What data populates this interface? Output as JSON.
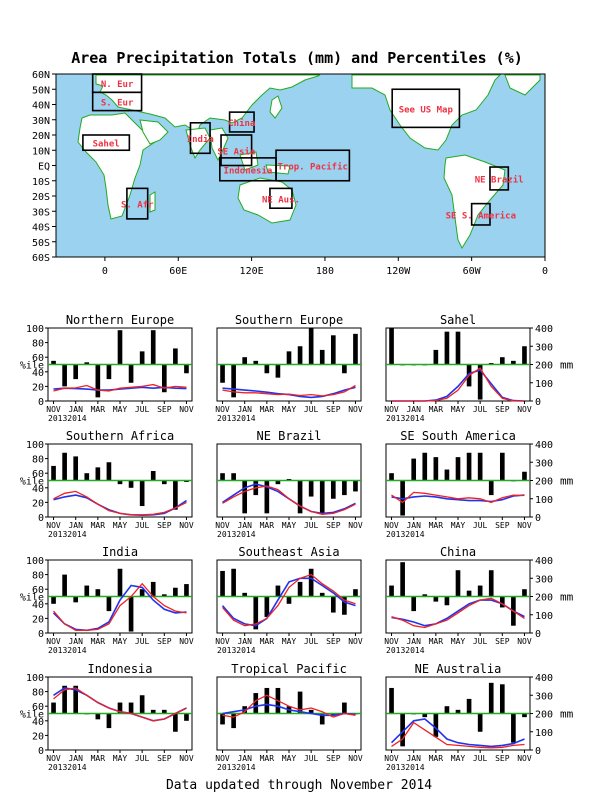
{
  "page": {
    "title": "Area Precipitation Totals (mm) and Percentiles (%)",
    "footer": "Data updated through November 2014"
  },
  "colors": {
    "ocean": "#9bd2f0",
    "land": "#ffffff",
    "coast": "#22aa22",
    "region_label": "#ee3344",
    "bars": "#000000",
    "line_observed": "#ee2222",
    "line_normal": "#2233ee",
    "line_50th": "#22aa22"
  },
  "map": {
    "lat_ticks": [
      "60N",
      "50N",
      "40N",
      "30N",
      "20N",
      "10N",
      "EQ",
      "10S",
      "20S",
      "30S",
      "40S",
      "50S",
      "60S"
    ],
    "lon_ticks": [
      "0",
      "60E",
      "120E",
      "180",
      "120W",
      "60W",
      "0"
    ],
    "regions": [
      {
        "label": "N. Eur",
        "lon": [
          -10,
          30
        ],
        "lat": [
          48,
          60
        ]
      },
      {
        "label": "S. Eur",
        "lon": [
          -10,
          30
        ],
        "lat": [
          36,
          48
        ]
      },
      {
        "label": "Sahel",
        "lon": [
          -18,
          20
        ],
        "lat": [
          10,
          20
        ]
      },
      {
        "label": "S. Afr",
        "lon": [
          18,
          35
        ],
        "lat": [
          -35,
          -15
        ]
      },
      {
        "label": "India",
        "lon": [
          70,
          86
        ],
        "lat": [
          8,
          28
        ]
      },
      {
        "label": "SE Asia",
        "lon": [
          95,
          120
        ],
        "lat": [
          0,
          20
        ]
      },
      {
        "label": "China",
        "lon": [
          102,
          122
        ],
        "lat": [
          22,
          35
        ]
      },
      {
        "label": "Indonesia",
        "lon": [
          94,
          140
        ],
        "lat": [
          -10,
          5
        ]
      },
      {
        "label": "Trop. Pacific",
        "lon": [
          140,
          200
        ],
        "lat": [
          -10,
          10
        ]
      },
      {
        "label": "NE Aus.",
        "lon": [
          135,
          153
        ],
        "lat": [
          -28,
          -15
        ]
      },
      {
        "label": "See US Map",
        "lon": [
          235,
          290
        ],
        "lat": [
          25,
          50
        ]
      },
      {
        "label": "NE Brazil",
        "lon": [
          315,
          330
        ],
        "lat": [
          -16,
          -1
        ]
      },
      {
        "label": "SE S. America",
        "lon": [
          300,
          315
        ],
        "lat": [
          -39,
          -25
        ]
      }
    ]
  },
  "panel_axes": {
    "left_label": "%ile",
    "right_label": "mm",
    "months": [
      "NOV",
      "JAN",
      "MAR",
      "MAY",
      "JUL",
      "SEP",
      "NOV"
    ],
    "years": [
      "2013",
      "2014"
    ]
  },
  "chart_data": [
    {
      "type": "bar+line",
      "title": "Northern Europe",
      "pct_ylim": [
        0,
        100
      ],
      "mm_ylim": [
        0,
        400
      ],
      "percentile": [
        55,
        20,
        30,
        53,
        5,
        30,
        97,
        25,
        68,
        97,
        12,
        72,
        38
      ],
      "mm_observed": [
        55,
        70,
        72,
        85,
        60,
        55,
        70,
        75,
        80,
        90,
        70,
        80,
        75
      ],
      "mm_normal": [
        65,
        70,
        68,
        65,
        60,
        60,
        65,
        70,
        75,
        70,
        75,
        70,
        68
      ]
    },
    {
      "type": "bar+line",
      "title": "Southern Europe",
      "pct_ylim": [
        0,
        100
      ],
      "mm_ylim": [
        0,
        400
      ],
      "percentile": [
        25,
        5,
        60,
        55,
        38,
        32,
        68,
        75,
        100,
        70,
        90,
        38,
        92
      ],
      "mm_observed": [
        60,
        50,
        45,
        45,
        40,
        35,
        38,
        30,
        35,
        28,
        35,
        50,
        85
      ],
      "mm_normal": [
        70,
        65,
        60,
        55,
        48,
        40,
        35,
        25,
        20,
        25,
        40,
        60,
        75
      ]
    },
    {
      "type": "bar+line",
      "title": "Sahel",
      "pct_ylim": [
        0,
        100
      ],
      "mm_ylim": [
        0,
        400
      ],
      "percentile": [
        100,
        50,
        50,
        50,
        70,
        95,
        95,
        20,
        2,
        52,
        60,
        55,
        75
      ],
      "mm_observed": [
        0,
        0,
        0,
        0,
        2,
        15,
        60,
        140,
        180,
        80,
        15,
        0,
        0
      ],
      "mm_normal": [
        0,
        0,
        0,
        0,
        5,
        25,
        80,
        150,
        170,
        95,
        20,
        2,
        0
      ]
    },
    {
      "type": "bar+line",
      "title": "Southern Africa",
      "pct_ylim": [
        0,
        100
      ],
      "mm_ylim": [
        0,
        400
      ],
      "percentile": [
        70,
        88,
        83,
        60,
        68,
        75,
        45,
        40,
        15,
        63,
        45,
        10,
        48
      ],
      "mm_observed": [
        100,
        130,
        140,
        110,
        70,
        35,
        20,
        12,
        12,
        15,
        25,
        50,
        80
      ],
      "mm_normal": [
        95,
        110,
        120,
        105,
        70,
        40,
        20,
        12,
        10,
        12,
        20,
        50,
        90
      ]
    },
    {
      "type": "bar+line",
      "title": "NE Brazil",
      "pct_ylim": [
        0,
        100
      ],
      "mm_ylim": [
        0,
        400
      ],
      "percentile": [
        60,
        60,
        5,
        30,
        5,
        45,
        52,
        5,
        28,
        5,
        25,
        30,
        35
      ],
      "mm_observed": [
        75,
        110,
        140,
        160,
        170,
        150,
        100,
        60,
        30,
        15,
        20,
        40,
        70
      ],
      "mm_normal": [
        80,
        120,
        160,
        180,
        165,
        140,
        100,
        60,
        30,
        20,
        25,
        45,
        75
      ]
    },
    {
      "type": "bar+line",
      "title": "SE South America",
      "pct_ylim": [
        0,
        100
      ],
      "mm_ylim": [
        0,
        400
      ],
      "percentile": [
        60,
        2,
        80,
        88,
        82,
        65,
        82,
        88,
        88,
        30,
        88,
        50,
        62
      ],
      "mm_observed": [
        120,
        80,
        135,
        130,
        120,
        110,
        100,
        105,
        100,
        80,
        105,
        120,
        118
      ],
      "mm_normal": [
        110,
        100,
        110,
        115,
        110,
        100,
        95,
        90,
        90,
        85,
        95,
        115,
        120
      ]
    },
    {
      "type": "bar+line",
      "title": "India",
      "pct_ylim": [
        0,
        100
      ],
      "mm_ylim": [
        0,
        400
      ],
      "percentile": [
        40,
        80,
        42,
        65,
        60,
        30,
        88,
        2,
        60,
        70,
        53,
        62,
        67
      ],
      "mm_observed": [
        120,
        50,
        15,
        15,
        20,
        50,
        150,
        200,
        270,
        200,
        150,
        120,
        110
      ],
      "mm_normal": [
        110,
        50,
        20,
        15,
        25,
        60,
        180,
        260,
        250,
        180,
        130,
        110,
        115
      ]
    },
    {
      "type": "bar+line",
      "title": "Southeast Asia",
      "pct_ylim": [
        0,
        100
      ],
      "mm_ylim": [
        0,
        400
      ],
      "percentile": [
        85,
        88,
        55,
        5,
        22,
        65,
        40,
        70,
        88,
        55,
        28,
        25,
        60
      ],
      "mm_observed": [
        140,
        70,
        40,
        50,
        80,
        150,
        250,
        300,
        320,
        270,
        230,
        180,
        160
      ],
      "mm_normal": [
        150,
        80,
        50,
        40,
        80,
        180,
        280,
        300,
        300,
        260,
        220,
        170,
        150
      ]
    },
    {
      "type": "bar+line",
      "title": "China",
      "pct_ylim": [
        0,
        100
      ],
      "mm_ylim": [
        0,
        400
      ],
      "percentile": [
        65,
        97,
        30,
        53,
        43,
        38,
        86,
        58,
        65,
        86,
        35,
        10,
        60
      ],
      "mm_observed": [
        90,
        70,
        40,
        30,
        50,
        70,
        110,
        150,
        180,
        190,
        160,
        120,
        80
      ],
      "mm_normal": [
        85,
        75,
        60,
        40,
        50,
        80,
        120,
        160,
        180,
        180,
        160,
        120,
        90
      ]
    },
    {
      "type": "bar+line",
      "title": "Indonesia",
      "pct_ylim": [
        0,
        100
      ],
      "mm_ylim": [
        0,
        400
      ],
      "percentile": [
        65,
        88,
        88,
        50,
        42,
        30,
        65,
        65,
        75,
        55,
        55,
        25,
        40
      ],
      "mm_observed": [
        280,
        330,
        340,
        300,
        260,
        230,
        210,
        200,
        180,
        160,
        170,
        200,
        230
      ],
      "mm_normal": [
        300,
        340,
        330,
        300,
        260,
        230,
        210,
        200,
        180,
        160,
        170,
        200,
        230
      ]
    },
    {
      "type": "bar+line",
      "title": "Tropical Pacific",
      "pct_ylim": [
        0,
        100
      ],
      "mm_ylim": [
        0,
        400
      ],
      "percentile": [
        35,
        30,
        60,
        78,
        85,
        85,
        60,
        80,
        55,
        35,
        47,
        65,
        50
      ],
      "mm_observed": [
        190,
        180,
        210,
        270,
        300,
        270,
        240,
        220,
        230,
        210,
        180,
        200,
        190
      ],
      "mm_normal": [
        200,
        210,
        220,
        240,
        250,
        240,
        220,
        210,
        200,
        190,
        190,
        200,
        195
      ]
    },
    {
      "type": "bar+line",
      "title": "NE Australia",
      "pct_ylim": [
        0,
        100
      ],
      "mm_ylim": [
        0,
        400
      ],
      "percentile": [
        85,
        5,
        50,
        45,
        18,
        60,
        55,
        70,
        25,
        92,
        90,
        10,
        45
      ],
      "mm_observed": [
        20,
        60,
        150,
        110,
        70,
        30,
        25,
        20,
        15,
        12,
        15,
        25,
        30
      ],
      "mm_normal": [
        40,
        100,
        160,
        170,
        120,
        60,
        40,
        30,
        25,
        20,
        25,
        35,
        60
      ]
    }
  ]
}
